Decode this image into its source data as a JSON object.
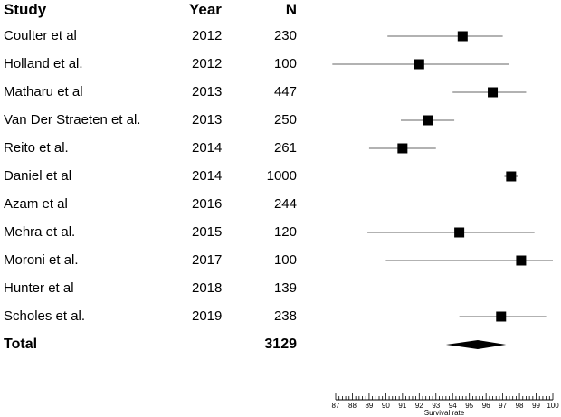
{
  "headers": {
    "study": "Study",
    "year": "Year",
    "n": "N"
  },
  "studies": [
    {
      "study": "Coulter et al",
      "year": "2012",
      "n": "230"
    },
    {
      "study": "Holland et al.",
      "year": "2012",
      "n": "100"
    },
    {
      "study": "Matharu et al",
      "year": "2013",
      "n": "447"
    },
    {
      "study": "Van Der Straeten et al.",
      "year": "2013",
      "n": "250"
    },
    {
      "study": "Reito et al.",
      "year": "2014",
      "n": "261"
    },
    {
      "study": "Daniel et al",
      "year": "2014",
      "n": "1000"
    },
    {
      "study": "Azam et al",
      "year": "2016",
      "n": "244"
    },
    {
      "study": "Mehra et al.",
      "year": "2015",
      "n": "120"
    },
    {
      "study": "Moroni et al.",
      "year": "2017",
      "n": "100"
    },
    {
      "study": "Hunter et al",
      "year": "2018",
      "n": "139"
    },
    {
      "study": "Scholes et al.",
      "year": "2019",
      "n": "238"
    }
  ],
  "total": {
    "label": "Total",
    "n": "3129"
  },
  "chart_data": {
    "type": "forest",
    "xlabel": "Survival rate",
    "xlim": [
      87,
      100
    ],
    "xticks": [
      87,
      88,
      89,
      90,
      91,
      92,
      93,
      94,
      95,
      96,
      97,
      98,
      99,
      100
    ],
    "points": [
      {
        "study": "Coulter et al",
        "estimate": 94.6,
        "lower": 90.1,
        "upper": 97.0
      },
      {
        "study": "Holland et al.",
        "estimate": 92.0,
        "lower": 86.8,
        "upper": 97.4
      },
      {
        "study": "Matharu et al",
        "estimate": 96.4,
        "lower": 94.0,
        "upper": 98.4
      },
      {
        "study": "Van Der Straeten et al.",
        "estimate": 92.5,
        "lower": 90.9,
        "upper": 94.1
      },
      {
        "study": "Reito et al.",
        "estimate": 91.0,
        "lower": 89.0,
        "upper": 93.0
      },
      {
        "study": "Daniel et al",
        "estimate": 97.5,
        "lower": 97.1,
        "upper": 97.9
      },
      {
        "study": "Azam et al",
        "estimate": null,
        "lower": null,
        "upper": null
      },
      {
        "study": "Mehra et al.",
        "estimate": 94.4,
        "lower": 88.9,
        "upper": 98.9
      },
      {
        "study": "Moroni et al.",
        "estimate": 98.1,
        "lower": 90.0,
        "upper": 100.0
      },
      {
        "study": "Hunter et al",
        "estimate": null,
        "lower": null,
        "upper": null
      },
      {
        "study": "Scholes et al.",
        "estimate": 96.9,
        "lower": 94.4,
        "upper": 99.6
      }
    ],
    "summary": {
      "estimate": 95.5,
      "lower": 93.6,
      "upper": 97.2
    }
  }
}
